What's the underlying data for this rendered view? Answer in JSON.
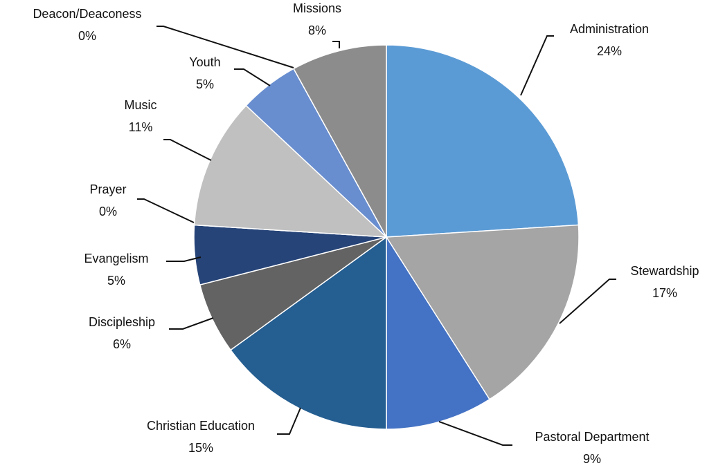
{
  "chart_data": {
    "type": "pie",
    "title": "",
    "start_angle_deg": 0,
    "direction": "clockwise",
    "slices": [
      {
        "label": "Administration",
        "value": 24,
        "value_label": "24%",
        "color": "#5b9bd5"
      },
      {
        "label": "Stewardship",
        "value": 17,
        "value_label": "17%",
        "color": "#a5a5a5"
      },
      {
        "label": "Pastoral Department",
        "value": 9,
        "value_label": "9%",
        "color": "#4472c4"
      },
      {
        "label": "Christian Education",
        "value": 15,
        "value_label": "15%",
        "color": "#255e91"
      },
      {
        "label": "Discipleship",
        "value": 6,
        "value_label": "6%",
        "color": "#636363"
      },
      {
        "label": "Evangelism",
        "value": 5,
        "value_label": "5%",
        "color": "#264478"
      },
      {
        "label": "Prayer",
        "value": 0,
        "value_label": "0%",
        "color": "#9e480e"
      },
      {
        "label": "Music",
        "value": 11,
        "value_label": "11%",
        "color": "#c0c0c0"
      },
      {
        "label": "Youth",
        "value": 5,
        "value_label": "5%",
        "color": "#698ed0"
      },
      {
        "label": "Deacon/Deaconess",
        "value": 0,
        "value_label": "0%",
        "color": "#997300"
      },
      {
        "label": "Missions",
        "value": 8,
        "value_label": "8%",
        "color": "#8c8c8c"
      }
    ],
    "data_labels": "outside with leader lines",
    "legend": "none"
  }
}
